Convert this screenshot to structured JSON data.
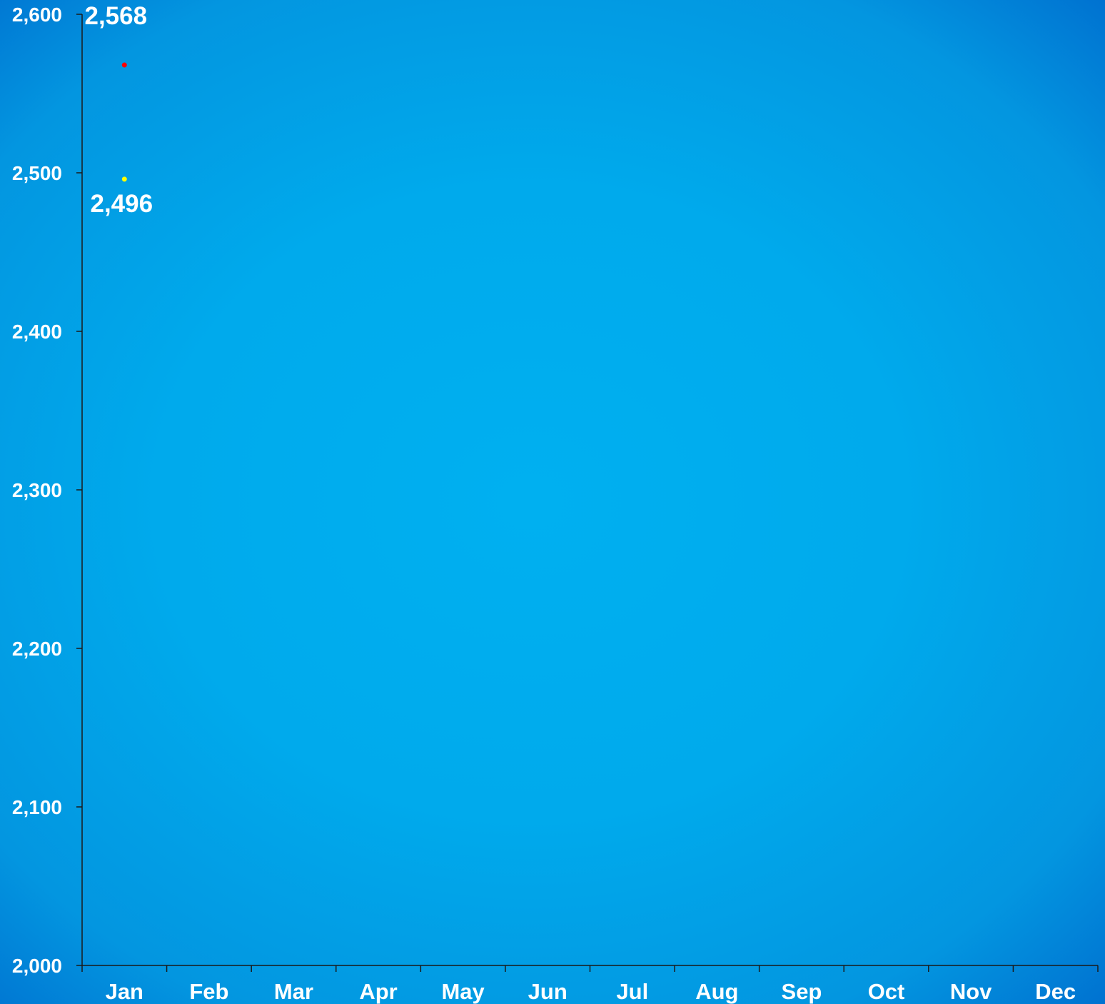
{
  "chart_data": {
    "type": "scatter",
    "title": "",
    "xlabel": "",
    "ylabel": "",
    "categories": [
      "Jan",
      "Feb",
      "Mar",
      "Apr",
      "May",
      "Jun",
      "Jul",
      "Aug",
      "Sep",
      "Oct",
      "Nov",
      "Dec"
    ],
    "ylim": [
      2000,
      2600
    ],
    "yticks": [
      2000,
      2100,
      2200,
      2300,
      2400,
      2500,
      2600
    ],
    "ytick_labels": [
      "2,000",
      "2,100",
      "2,200",
      "2,300",
      "2,400",
      "2,500",
      "2,600"
    ],
    "grid": false,
    "legend": "none",
    "series": [
      {
        "values": [
          2568,
          null,
          null,
          null,
          null,
          null,
          null,
          null,
          null,
          null,
          null,
          null
        ],
        "color": "#ff0000",
        "data_labels": [
          "2,568"
        ],
        "label_position": "above"
      },
      {
        "values": [
          2496,
          null,
          null,
          null,
          null,
          null,
          null,
          null,
          null,
          null,
          null,
          null
        ],
        "color": "#ffff00",
        "data_labels": [
          "2,496"
        ],
        "label_position": "below"
      }
    ],
    "axis_color": "#1a1a1a",
    "text_color": "#ffffff"
  }
}
